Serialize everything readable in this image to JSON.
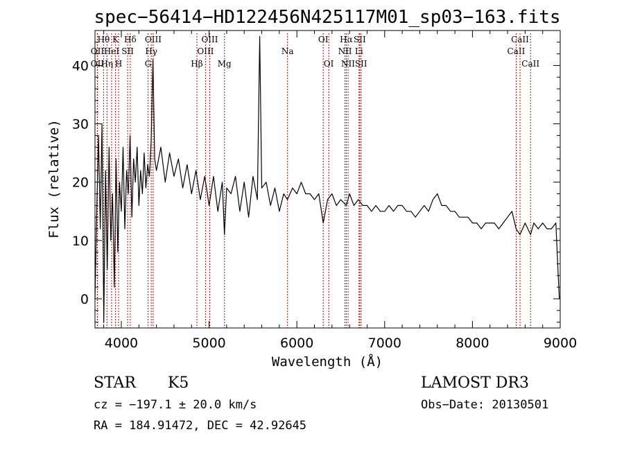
{
  "chart_data": {
    "type": "line",
    "title": "spec−56414−HD122456N425117M01_sp03−163.fits",
    "xlabel": "Wavelength (Å)",
    "ylabel": "Flux (relative)",
    "xlim": [
      3700,
      9000
    ],
    "ylim": [
      -5,
      46
    ],
    "xticks": [
      4000,
      5000,
      6000,
      7000,
      8000,
      9000
    ],
    "yticks": [
      0,
      10,
      20,
      30,
      40
    ],
    "series": [
      {
        "x": [
          3700,
          3720,
          3740,
          3760,
          3780,
          3800,
          3820,
          3840,
          3860,
          3880,
          3900,
          3920,
          3940,
          3960,
          3980,
          4000,
          4020,
          4040,
          4060,
          4080,
          4100,
          4120,
          4140,
          4160,
          4180,
          4200,
          4220,
          4240,
          4260,
          4280,
          4300,
          4320,
          4340,
          4360,
          4380,
          4400,
          4450,
          4500,
          4550,
          4600,
          4650,
          4700,
          4750,
          4800,
          4850,
          4900,
          4950,
          5000,
          5050,
          5100,
          5150,
          5175,
          5200,
          5250,
          5300,
          5350,
          5400,
          5450,
          5500,
          5550,
          5577,
          5600,
          5650,
          5700,
          5750,
          5800,
          5850,
          5893,
          5950,
          6000,
          6050,
          6100,
          6150,
          6200,
          6250,
          6300,
          6350,
          6400,
          6450,
          6500,
          6563,
          6600,
          6650,
          6700,
          6750,
          6800,
          6850,
          6900,
          6950,
          7000,
          7050,
          7100,
          7150,
          7200,
          7250,
          7300,
          7350,
          7400,
          7450,
          7500,
          7550,
          7600,
          7650,
          7700,
          7750,
          7800,
          7850,
          7900,
          7950,
          8000,
          8050,
          8100,
          8150,
          8200,
          8250,
          8300,
          8350,
          8400,
          8450,
          8498,
          8542,
          8600,
          8662,
          8700,
          8750,
          8800,
          8850,
          8900,
          8950,
          8990
        ],
        "values": [
          0,
          15,
          28,
          12,
          30,
          -4,
          22,
          5,
          26,
          10,
          18,
          2,
          24,
          8,
          20,
          15,
          26,
          12,
          22,
          18,
          28,
          14,
          24,
          20,
          26,
          16,
          22,
          18,
          25,
          19,
          23,
          21,
          27,
          41,
          24,
          22,
          26,
          20,
          25,
          21,
          24,
          19,
          23,
          18,
          22,
          17,
          21,
          16,
          21,
          15,
          20,
          11,
          19,
          18,
          21,
          15,
          20,
          14,
          21,
          17,
          45,
          19,
          20,
          16,
          19,
          15,
          18,
          17,
          19,
          18,
          20,
          18,
          18,
          17,
          18,
          13,
          17,
          18,
          16,
          17,
          16,
          18,
          16,
          17,
          16,
          16,
          15,
          16,
          15,
          15,
          16,
          15,
          16,
          16,
          15,
          15,
          14,
          15,
          16,
          15,
          17,
          18,
          16,
          16,
          15,
          15,
          14,
          14,
          14,
          13,
          13,
          12,
          13,
          13,
          13,
          12,
          13,
          14,
          15,
          12,
          11,
          13,
          11,
          13,
          12,
          13,
          12,
          12,
          13,
          0
        ]
      }
    ],
    "spectral_lines": [
      {
        "label": "Hθ",
        "wavelength": 3798,
        "row": 1
      },
      {
        "label": "OII",
        "wavelength": 3727,
        "row": 2
      },
      {
        "label": "OII",
        "wavelength": 3727,
        "row": 3
      },
      {
        "label": "Hη",
        "wavelength": 3836,
        "row": 3
      },
      {
        "label": "HeI",
        "wavelength": 3889,
        "row": 2
      },
      {
        "label": "K",
        "wavelength": 3934,
        "row": 1
      },
      {
        "label": "H",
        "wavelength": 3969,
        "row": 3
      },
      {
        "label": "SII",
        "wavelength": 4072,
        "row": 2
      },
      {
        "label": "Hδ",
        "wavelength": 4102,
        "row": 1
      },
      {
        "label": "G",
        "wavelength": 4305,
        "row": 3
      },
      {
        "label": "Hγ",
        "wavelength": 4341,
        "row": 2
      },
      {
        "label": "OIII",
        "wavelength": 4363,
        "row": 1
      },
      {
        "label": "Hβ",
        "wavelength": 4861,
        "row": 3
      },
      {
        "label": "OIII",
        "wavelength": 4959,
        "row": 2
      },
      {
        "label": "OIII",
        "wavelength": 5007,
        "row": 1
      },
      {
        "label": "Mg",
        "wavelength": 5175,
        "row": 3
      },
      {
        "label": "Na",
        "wavelength": 5893,
        "row": 2
      },
      {
        "label": "OI",
        "wavelength": 6300,
        "row": 1
      },
      {
        "label": "OI",
        "wavelength": 6363,
        "row": 3
      },
      {
        "label": "NII",
        "wavelength": 6548,
        "row": 2
      },
      {
        "label": "Hα",
        "wavelength": 6563,
        "row": 1
      },
      {
        "label": "NII",
        "wavelength": 6583,
        "row": 3
      },
      {
        "label": "Li",
        "wavelength": 6708,
        "row": 2
      },
      {
        "label": "SII",
        "wavelength": 6716,
        "row": 1
      },
      {
        "label": "SII",
        "wavelength": 6731,
        "row": 3
      },
      {
        "label": "CaII",
        "wavelength": 8498,
        "row": 2
      },
      {
        "label": "CaII",
        "wavelength": 8542,
        "row": 1
      },
      {
        "label": "CaII",
        "wavelength": 8662,
        "row": 3
      }
    ],
    "line_color": "#000000",
    "marker_color": "#c00000"
  },
  "info": {
    "class": "STAR",
    "subclass": "K5",
    "survey": "LAMOST DR3",
    "cz": "cz = −197.1 ± 20.0 km/s",
    "obs_date": "Obs−Date: 20130501",
    "coords": "RA = 184.91472, DEC =  42.92645"
  }
}
